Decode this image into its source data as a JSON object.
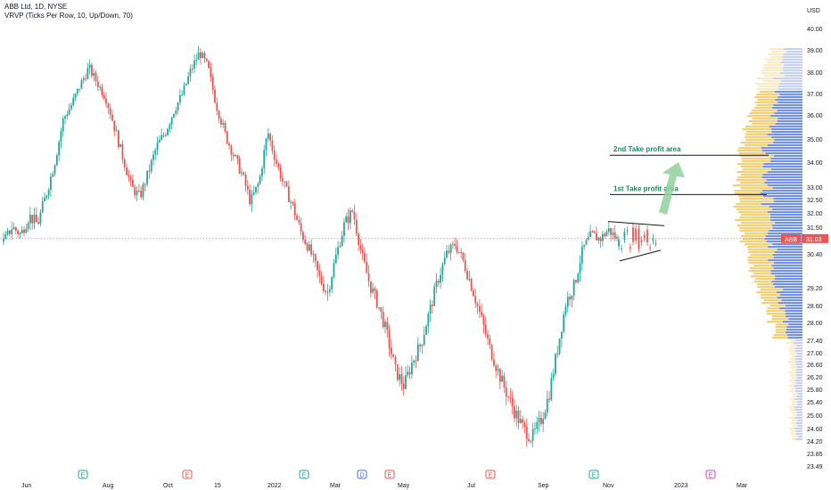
{
  "header": {
    "symbol_line": "ABB Ltd, 1D, NYSE",
    "indicator_line": "VRVP (Ticks Per Row, 10, Up/Down, 70)"
  },
  "currency": "USD",
  "colors": {
    "up": "#26a69a",
    "down": "#ef5350",
    "vp_up": "#5b7fe0",
    "vp_down": "#f5c55a",
    "price_line": "#ef5350",
    "annotation_text": "#1b8a5a",
    "arrow": "#8fd19e"
  },
  "chart_data": {
    "type": "candlestick",
    "title": "ABB Ltd, 1D, NYSE",
    "ylim": [
      23.85,
      40.0
    ],
    "y_ticks": [
      "40.00",
      "39.00",
      "38.00",
      "37.00",
      "36.00",
      "35.00",
      "34.00",
      "33.00",
      "32.50",
      "32.00",
      "31.50",
      "30.40",
      "29.20",
      "28.60",
      "28.00",
      "27.40",
      "27.00",
      "26.60",
      "26.20",
      "25.80",
      "25.40",
      "25.00",
      "24.60",
      "24.20",
      "23.85",
      "23.49"
    ],
    "x_ticks": [
      "Jun",
      "Aug",
      "Oct",
      "15",
      "2022",
      "Mar",
      "May",
      "Jul",
      "Sep",
      "Nov",
      "2023",
      "Mar"
    ],
    "last_price": {
      "symbol": "ABB",
      "value": "31.03"
    },
    "annotations": [
      {
        "text": "2nd Take profit area",
        "price": 34.3
      },
      {
        "text": "1st Take profit area",
        "price": 32.7
      }
    ],
    "trend_path_prices": [
      30.9,
      31.5,
      31.2,
      31.9,
      31.6,
      32.7,
      34.0,
      35.8,
      36.5,
      37.4,
      38.2,
      37.5,
      36.8,
      35.5,
      34.2,
      33.0,
      32.6,
      33.6,
      34.7,
      35.3,
      36.2,
      37.0,
      38.1,
      38.9,
      38.2,
      36.4,
      35.2,
      34.3,
      33.5,
      32.4,
      33.2,
      35.3,
      34.0,
      33.0,
      32.2,
      31.2,
      30.5,
      29.6,
      29.0,
      30.3,
      31.6,
      32.1,
      30.4,
      29.3,
      28.6,
      27.6,
      26.4,
      25.9,
      26.7,
      27.3,
      28.4,
      29.5,
      30.4,
      30.8,
      30.1,
      29.2,
      28.2,
      27.2,
      26.4,
      25.7,
      25.1,
      24.6,
      24.3,
      24.8,
      25.6,
      27.1,
      28.7,
      29.3,
      30.6,
      31.2,
      31.0,
      31.4,
      31.0
    ],
    "event_markers": [
      {
        "label": "E",
        "color": "#26a69a"
      },
      {
        "label": "E",
        "color": "#ef5350"
      },
      {
        "label": "E",
        "color": "#26a69a"
      },
      {
        "label": "D",
        "color": "#4a6ed9"
      },
      {
        "label": "E",
        "color": "#ef5350"
      },
      {
        "label": "E",
        "color": "#ef5350"
      },
      {
        "label": "E",
        "color": "#26a69a"
      },
      {
        "label": "E",
        "color": "#cc44cc"
      }
    ]
  }
}
